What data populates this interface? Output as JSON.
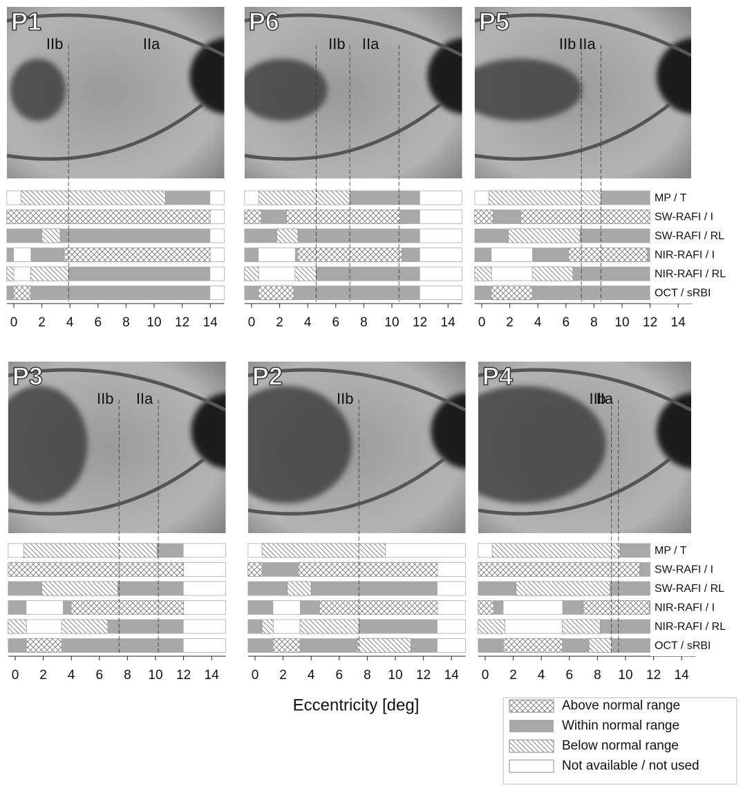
{
  "chart_data": [
    {
      "type": "range-bar",
      "title": "P1",
      "xlim": [
        -0.5,
        15
      ],
      "xticks": [
        0,
        2,
        4,
        6,
        8,
        10,
        12,
        14
      ],
      "boundaries": [
        3.9
      ],
      "boundary_labels": [
        "IIb",
        "IIa"
      ],
      "rows": [
        {
          "below": [
            [
              0.5,
              10.8
            ]
          ],
          "within": [
            [
              10.8,
              14
            ]
          ]
        },
        {
          "above": [
            [
              -0.5,
              14
            ]
          ]
        },
        {
          "within": [
            [
              -0.5,
              2.0
            ],
            [
              3.3,
              14
            ]
          ],
          "below": [
            [
              2.0,
              3.3
            ]
          ]
        },
        {
          "within": [
            [
              -0.5,
              0
            ],
            [
              1.2,
              3.6
            ]
          ],
          "above": [
            [
              3.6,
              14
            ]
          ]
        },
        {
          "below": [
            [
              -0.5,
              0
            ],
            [
              1.2,
              3.9
            ]
          ],
          "within": [
            [
              3.9,
              14
            ]
          ]
        },
        {
          "within": [
            [
              -0.5,
              0
            ],
            [
              1.2,
              14
            ]
          ],
          "above": [
            [
              0,
              1.2
            ]
          ]
        }
      ]
    },
    {
      "type": "range-bar",
      "title": "P6",
      "xlim": [
        -0.5,
        15
      ],
      "xticks": [
        0,
        2,
        4,
        6,
        8,
        10,
        12,
        14
      ],
      "boundaries": [
        4.6,
        7.0,
        10.5
      ],
      "boundary_labels": [
        "IIb",
        "IIa"
      ],
      "rows": [
        {
          "below": [
            [
              0.5,
              7.0
            ]
          ],
          "within": [
            [
              7.0,
              12
            ]
          ]
        },
        {
          "above": [
            [
              -0.5,
              0.7
            ],
            [
              2.5,
              10.6
            ]
          ],
          "within": [
            [
              0.7,
              2.5
            ],
            [
              10.6,
              12
            ]
          ]
        },
        {
          "within": [
            [
              -0.5,
              1.8
            ],
            [
              3.3,
              12
            ]
          ],
          "below": [
            [
              1.8,
              3.3
            ]
          ]
        },
        {
          "within": [
            [
              -0.5,
              0.5
            ],
            [
              3.1,
              3.3
            ],
            [
              10.7,
              12
            ]
          ],
          "above": [
            [
              3.3,
              10.7
            ]
          ]
        },
        {
          "below": [
            [
              -0.5,
              0.5
            ],
            [
              3.1,
              4.6
            ]
          ],
          "within": [
            [
              4.6,
              12
            ]
          ]
        },
        {
          "within": [
            [
              -0.5,
              0.5
            ],
            [
              3.0,
              12
            ]
          ],
          "above": [
            [
              0.5,
              3.0
            ]
          ]
        }
      ]
    },
    {
      "type": "range-bar",
      "title": "P5",
      "xlim": [
        -0.5,
        15
      ],
      "xticks": [
        0,
        2,
        4,
        6,
        8,
        10,
        12,
        14
      ],
      "boundaries": [
        7.1,
        8.5
      ],
      "boundary_labels": [
        "IIb",
        "IIa"
      ],
      "rows": [
        {
          "below": [
            [
              0.5,
              8.5
            ]
          ],
          "within": [
            [
              8.5,
              12
            ]
          ]
        },
        {
          "above": [
            [
              -0.5,
              0.8
            ],
            [
              2.8,
              12
            ]
          ],
          "within": [
            [
              0.8,
              2.8
            ]
          ]
        },
        {
          "within": [
            [
              -0.5,
              1.9
            ],
            [
              7.0,
              12
            ]
          ],
          "below": [
            [
              1.9,
              7.0
            ]
          ]
        },
        {
          "within": [
            [
              -0.5,
              0.7
            ],
            [
              3.6,
              6.2
            ],
            [
              11.8,
              12
            ]
          ],
          "above": [
            [
              6.2,
              11.8
            ]
          ]
        },
        {
          "below": [
            [
              -0.5,
              0.7
            ],
            [
              3.6,
              6.5
            ]
          ],
          "within": [
            [
              6.5,
              12
            ]
          ]
        },
        {
          "within": [
            [
              -0.5,
              0.7
            ],
            [
              3.6,
              12
            ]
          ],
          "above": [
            [
              0.7,
              3.6
            ]
          ]
        }
      ]
    },
    {
      "type": "range-bar",
      "title": "P3",
      "xlim": [
        -0.5,
        15
      ],
      "xticks": [
        0,
        2,
        4,
        6,
        8,
        10,
        12,
        14
      ],
      "boundaries": [
        7.4,
        10.2
      ],
      "boundary_labels": [
        "IIb",
        "IIa"
      ],
      "rows": [
        {
          "below": [
            [
              0.6,
              10.1
            ]
          ],
          "within": [
            [
              10.1,
              12
            ]
          ]
        },
        {
          "above": [
            [
              -0.5,
              12
            ]
          ]
        },
        {
          "within": [
            [
              -0.5,
              1.9
            ],
            [
              7.3,
              12
            ]
          ],
          "below": [
            [
              1.9,
              7.3
            ]
          ]
        },
        {
          "within": [
            [
              -0.5,
              0.8
            ],
            [
              3.4,
              4.0
            ]
          ],
          "above": [
            [
              4.0,
              12
            ]
          ]
        },
        {
          "below": [
            [
              -0.5,
              0.8
            ],
            [
              3.3,
              6.6
            ]
          ],
          "within": [
            [
              6.6,
              12
            ]
          ]
        },
        {
          "within": [
            [
              -0.5,
              0.8
            ],
            [
              3.3,
              12
            ]
          ],
          "above": [
            [
              0.8,
              3.3
            ]
          ]
        }
      ]
    },
    {
      "type": "range-bar",
      "title": "P2",
      "xlim": [
        -0.5,
        15
      ],
      "xticks": [
        0,
        2,
        4,
        6,
        8,
        10,
        12,
        14
      ],
      "boundaries": [
        7.4
      ],
      "boundary_labels": [
        "IIb"
      ],
      "rows": [
        {
          "below": [
            [
              0.5,
              9.3
            ]
          ]
        },
        {
          "above": [
            [
              -0.5,
              0.5
            ],
            [
              3.1,
              13
            ]
          ],
          "within": [
            [
              0.5,
              3.1
            ]
          ]
        },
        {
          "within": [
            [
              -0.5,
              2.3
            ],
            [
              4.0,
              13
            ]
          ],
          "below": [
            [
              2.3,
              4.0
            ]
          ]
        },
        {
          "within": [
            [
              -0.5,
              1.3
            ],
            [
              3.2,
              4.6
            ]
          ],
          "above": [
            [
              4.6,
              13
            ]
          ]
        },
        {
          "within": [
            [
              -0.5,
              0.5
            ],
            [
              7.4,
              13
            ]
          ],
          "below": [
            [
              0.5,
              1.3
            ],
            [
              3.2,
              7.4
            ]
          ]
        },
        {
          "within": [
            [
              -0.5,
              1.3
            ],
            [
              3.2,
              7.3
            ],
            [
              11.1,
              13
            ]
          ],
          "above": [
            [
              1.3,
              3.2
            ]
          ],
          "below": [
            [
              7.3,
              11.1
            ]
          ]
        }
      ]
    },
    {
      "type": "range-bar",
      "title": "P4",
      "xlim": [
        -0.5,
        15
      ],
      "xticks": [
        0,
        2,
        4,
        6,
        8,
        10,
        12,
        14
      ],
      "boundaries": [
        9.0,
        9.5
      ],
      "boundary_labels": [
        "IIb",
        "IIa"
      ],
      "rows": [
        {
          "below": [
            [
              0.5,
              9.6
            ]
          ],
          "within": [
            [
              9.6,
              12
            ]
          ]
        },
        {
          "above": [
            [
              -0.5,
              11
            ]
          ],
          "within": [
            [
              11,
              12
            ]
          ]
        },
        {
          "within": [
            [
              -0.5,
              2.2
            ],
            [
              8.9,
              12
            ]
          ],
          "below": [
            [
              2.2,
              8.9
            ]
          ]
        },
        {
          "above": [
            [
              -0.5,
              0.6
            ],
            [
              7.0,
              11.7
            ]
          ],
          "within": [
            [
              0.6,
              1.3
            ],
            [
              5.5,
              7.0
            ],
            [
              11.7,
              12
            ]
          ]
        },
        {
          "below": [
            [
              -0.5,
              1.4
            ],
            [
              5.5,
              8.2
            ]
          ],
          "within": [
            [
              8.2,
              12
            ]
          ]
        },
        {
          "within": [
            [
              -0.5,
              1.3
            ],
            [
              5.5,
              7.4
            ],
            [
              9.0,
              12
            ]
          ],
          "above": [
            [
              1.3,
              5.5
            ]
          ],
          "below": [
            [
              7.4,
              9.0
            ]
          ]
        }
      ]
    }
  ],
  "row_labels": [
    "MP / T",
    "SW-RAFI / I",
    "SW-RAFI / RL",
    "NIR-RAFI / I",
    "NIR-RAFI / RL",
    "OCT / sRBI"
  ],
  "x_label": "Eccentricity [deg]",
  "legend": [
    "Above normal range",
    "Within normal range",
    "Below normal range",
    "Not available / not used"
  ]
}
